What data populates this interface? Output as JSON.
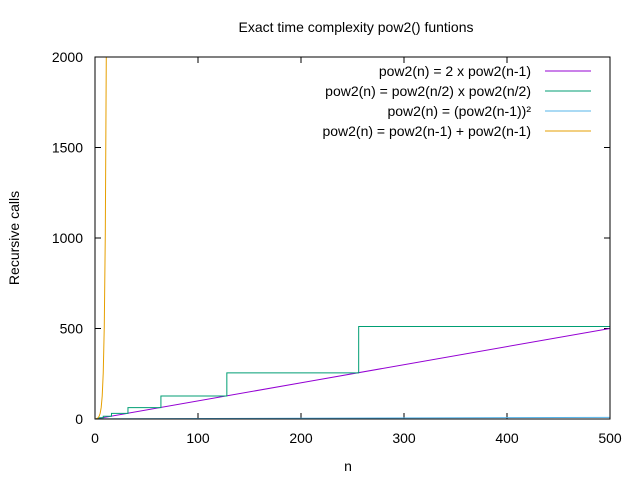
{
  "chart_data": {
    "type": "line",
    "title": "Exact time complexity pow2() funtions",
    "xlabel": "n",
    "ylabel": "Recursive calls",
    "xlim": [
      0,
      500
    ],
    "ylim": [
      0,
      2000
    ],
    "xticks": [
      0,
      100,
      200,
      300,
      400,
      500
    ],
    "yticks": [
      0,
      500,
      1000,
      1500,
      2000
    ],
    "grid": false,
    "legend_position": "top-right",
    "series": [
      {
        "name": "pow2(n) = 2 x pow2(n-1)",
        "color": "#9400d3",
        "shape": "linear",
        "x": [
          1,
          500
        ],
        "y": [
          1,
          500
        ]
      },
      {
        "name": "pow2(n) = pow2(n/2) x pow2(n/2)",
        "color": "#009e73",
        "shape": "step",
        "x": [
          1,
          2,
          4,
          8,
          16,
          32,
          64,
          128,
          256,
          500
        ],
        "y": [
          1,
          3,
          7,
          15,
          31,
          63,
          127,
          255,
          511,
          1023
        ]
      },
      {
        "name": "pow2(n) = (pow2(n-1))²",
        "color": "#56b4e9",
        "shape": "linear",
        "x": [
          1,
          500
        ],
        "y": [
          1,
          9
        ]
      },
      {
        "name": "pow2(n) = pow2(n-1) + pow2(n-1)",
        "color": "#e69f00",
        "shape": "exponential",
        "x": [
          1,
          2,
          3,
          4,
          5,
          6,
          7,
          8,
          9,
          10,
          11
        ],
        "y": [
          1,
          3,
          7,
          15,
          31,
          63,
          127,
          255,
          511,
          1023,
          2047
        ]
      }
    ]
  }
}
